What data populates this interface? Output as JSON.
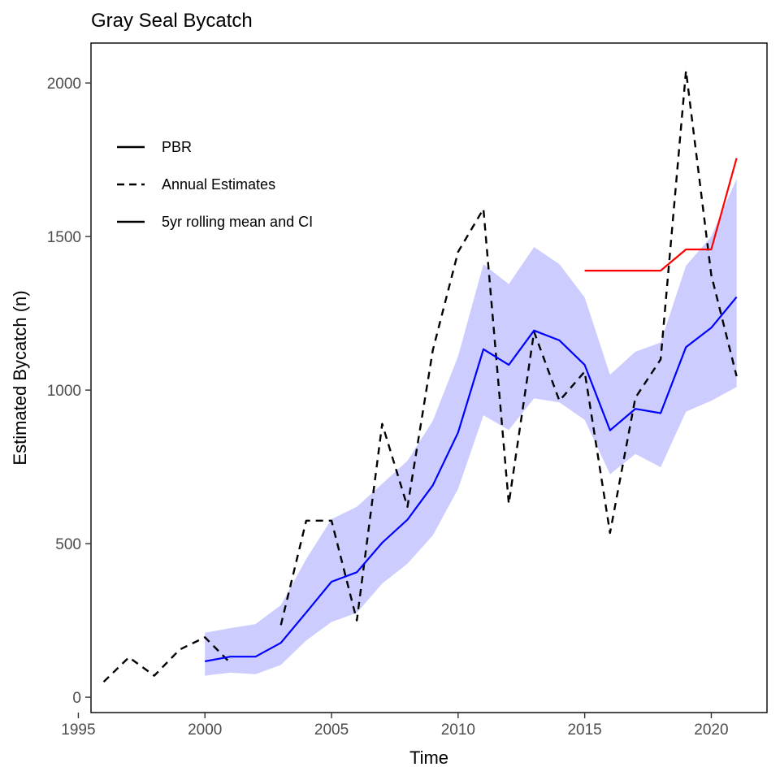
{
  "chart_data": {
    "type": "line",
    "title": "Gray Seal Bycatch",
    "xlabel": "Time",
    "ylabel": "Estimated Bycatch (n)",
    "xlim": [
      1995.5,
      2022.2
    ],
    "ylim": [
      -50,
      2130
    ],
    "xticks": [
      1995,
      2000,
      2005,
      2010,
      2015,
      2020
    ],
    "yticks": [
      0,
      500,
      1000,
      1500,
      2000
    ],
    "grid": false,
    "legend": {
      "placement": "top-left",
      "entries": [
        {
          "label": "PBR",
          "style": "solid"
        },
        {
          "label": "Annual Estimates",
          "style": "dashed"
        },
        {
          "label": "5yr rolling mean and CI",
          "style": "solid"
        }
      ]
    },
    "colors": {
      "pbr": "#ff0000",
      "annual": "#000000",
      "rolling": "#0000ff",
      "ci": "#ccccff"
    },
    "series": [
      {
        "name": "PBR",
        "x": [
          2015,
          2016,
          2017,
          2018,
          2019,
          2020,
          2021
        ],
        "values": [
          1389,
          1389,
          1389,
          1389,
          1458,
          1458,
          1755
        ]
      },
      {
        "name": "Annual Estimates",
        "x": [
          1996,
          1997,
          1998,
          1999,
          2000,
          2001,
          2002,
          2003,
          2004,
          2005,
          2006,
          2007,
          2008,
          2009,
          2010,
          2011,
          2012,
          2013,
          2014,
          2015,
          2016,
          2017,
          2018,
          2019,
          2020,
          2021
        ],
        "values": [
          50,
          130,
          70,
          155,
          195,
          112,
          null,
          235,
          575,
          575,
          250,
          890,
          620,
          1130,
          1450,
          1590,
          630,
          1190,
          965,
          1060,
          535,
          975,
          1100,
          2040,
          1375,
          1045
        ]
      },
      {
        "name": "5yr rolling mean and CI",
        "x": [
          2000,
          2001,
          2002,
          2003,
          2004,
          2005,
          2006,
          2007,
          2008,
          2009,
          2010,
          2011,
          2012,
          2013,
          2014,
          2015,
          2016,
          2017,
          2018,
          2019,
          2020,
          2021
        ],
        "values": [
          117,
          132,
          132,
          177,
          276,
          376,
          407,
          503,
          578,
          690,
          862,
          1133,
          1082,
          1194,
          1162,
          1082,
          869,
          939,
          925,
          1140,
          1203,
          1303
        ],
        "lower": [
          70,
          80,
          75,
          105,
          185,
          245,
          275,
          370,
          435,
          527,
          678,
          918,
          870,
          973,
          960,
          903,
          726,
          792,
          749,
          930,
          965,
          1010
        ],
        "upper": [
          210,
          225,
          238,
          300,
          450,
          580,
          620,
          695,
          770,
          900,
          1110,
          1410,
          1345,
          1466,
          1410,
          1302,
          1050,
          1125,
          1155,
          1405,
          1500,
          1688
        ]
      }
    ]
  }
}
